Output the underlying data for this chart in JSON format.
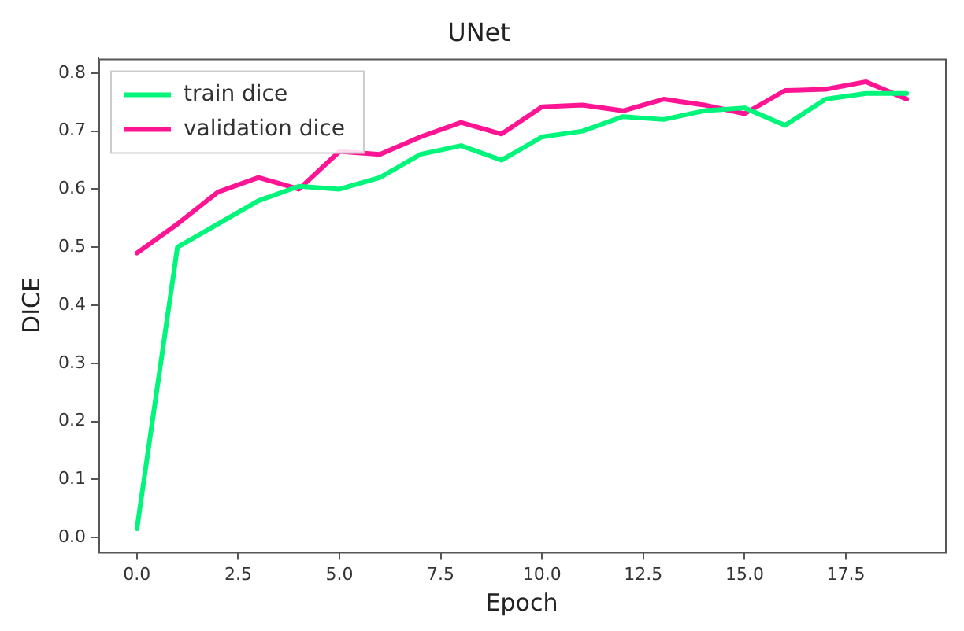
{
  "chart_data": {
    "type": "line",
    "title": "UNet",
    "xlabel": "Epoch",
    "ylabel": "DICE",
    "x": [
      0,
      1,
      2,
      3,
      4,
      5,
      6,
      7,
      8,
      9,
      10,
      11,
      12,
      13,
      14,
      15,
      16,
      17,
      18,
      19
    ],
    "series": [
      {
        "name": "train dice",
        "color": "#00f57a",
        "values": [
          0.015,
          0.5,
          0.54,
          0.58,
          0.605,
          0.6,
          0.62,
          0.66,
          0.675,
          0.65,
          0.69,
          0.7,
          0.725,
          0.72,
          0.735,
          0.74,
          0.71,
          0.755,
          0.765,
          0.765
        ]
      },
      {
        "name": "validation dice",
        "color": "#ff1493",
        "values": [
          0.49,
          0.54,
          0.595,
          0.62,
          0.6,
          0.665,
          0.66,
          0.69,
          0.715,
          0.695,
          0.742,
          0.745,
          0.735,
          0.755,
          0.745,
          0.73,
          0.77,
          0.772,
          0.785,
          0.755
        ]
      }
    ],
    "xlim": [
      -0.95,
      19.95
    ],
    "xticks": [
      {
        "value": 0,
        "label": "0.0"
      },
      {
        "value": 2.5,
        "label": "2.5"
      },
      {
        "value": 5,
        "label": "5.0"
      },
      {
        "value": 7.5,
        "label": "7.5"
      },
      {
        "value": 10,
        "label": "10.0"
      },
      {
        "value": 12.5,
        "label": "12.5"
      },
      {
        "value": 15,
        "label": "15.0"
      },
      {
        "value": 17.5,
        "label": "17.5"
      }
    ],
    "ylim": [
      -0.025,
      0.825
    ],
    "yticks": [
      {
        "value": 0,
        "label": "0.0"
      },
      {
        "value": 0.1,
        "label": "0.1"
      },
      {
        "value": 0.2,
        "label": "0.2"
      },
      {
        "value": 0.3,
        "label": "0.3"
      },
      {
        "value": 0.4,
        "label": "0.4"
      },
      {
        "value": 0.5,
        "label": "0.5"
      },
      {
        "value": 0.6,
        "label": "0.6"
      },
      {
        "value": 0.7,
        "label": "0.7"
      },
      {
        "value": 0.8,
        "label": "0.8"
      }
    ],
    "grid": false,
    "legend": "top left",
    "marker": "none",
    "line_style": "solid"
  }
}
